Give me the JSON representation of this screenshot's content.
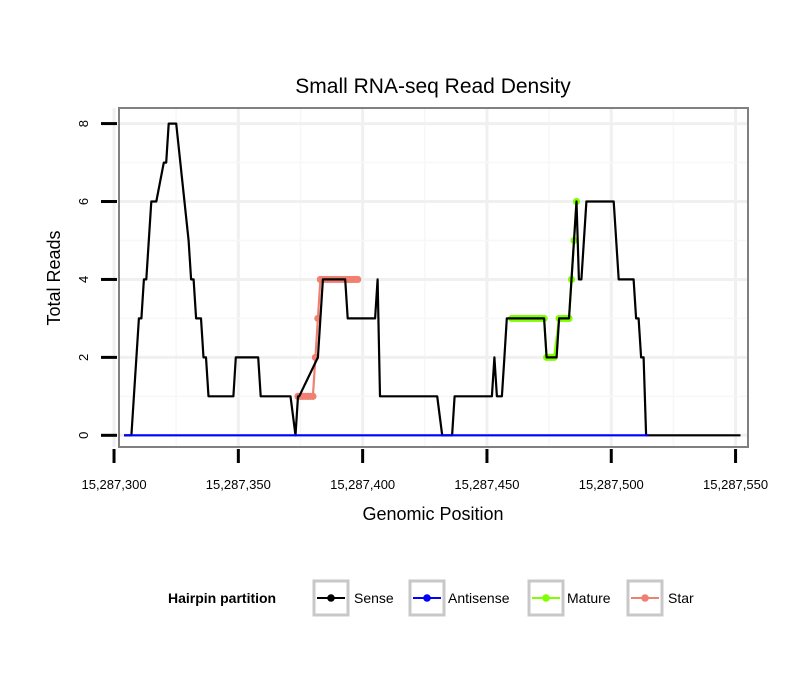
{
  "chart_data": {
    "type": "line",
    "title": "Small RNA-seq Read Density",
    "xlabel": "Genomic Position",
    "ylabel": "Total Reads",
    "xlim": [
      15287302,
      15287555
    ],
    "ylim": [
      -0.3,
      8.4
    ],
    "x_ticks": [
      15287300,
      15287350,
      15287400,
      15287450,
      15287500,
      15287550
    ],
    "x_tick_labels": [
      "15,287,300",
      "15,287,350",
      "15,287,400",
      "15,287,450",
      "15,287,500",
      "15,287,550"
    ],
    "y_ticks": [
      0,
      2,
      4,
      6,
      8
    ],
    "y_tick_labels": [
      "0",
      "2",
      "4",
      "6",
      "8"
    ],
    "grid": true,
    "legend": {
      "title": "Hairpin partition",
      "placement": "bottom",
      "entries": [
        {
          "name": "Sense",
          "color": "#000000"
        },
        {
          "name": "Antisense",
          "color": "#0000ff"
        },
        {
          "name": "Mature",
          "color": "#7fff00"
        },
        {
          "name": "Star",
          "color": "#f08070"
        }
      ]
    },
    "series": [
      {
        "name": "Sense",
        "color": "#000000",
        "x": [
          15287304,
          15287307,
          15287308,
          15287309,
          15287310,
          15287311,
          15287312,
          15287313,
          15287314,
          15287315,
          15287316,
          15287317,
          15287320,
          15287321,
          15287322,
          15287323,
          15287324,
          15287325,
          15287330,
          15287331,
          15287332,
          15287333,
          15287335,
          15287336,
          15287336.5,
          15287337,
          15287338,
          15287339,
          15287340,
          15287341,
          15287348,
          15287349,
          15287350,
          15287358,
          15287359,
          15287371,
          15287373,
          15287374,
          15287374.5,
          15287382,
          15287383,
          15287384,
          15287385,
          15287393,
          15287394,
          15287399,
          15287400,
          15287405,
          15287406,
          15287407,
          15287430,
          15287432,
          15287436,
          15287437,
          15287452,
          15287453,
          15287454,
          15287456,
          15287457,
          15287458,
          15287459,
          15287473,
          15287474,
          15287478,
          15287479,
          15287483,
          15287484,
          15287485,
          15287486,
          15287487,
          15287488,
          15287489,
          15287490,
          15287492,
          15287493,
          15287501,
          15287502,
          15287503,
          15287504,
          15287509,
          15287510,
          15287511,
          15287512,
          15287513,
          15287514,
          15287516,
          15287552
        ],
        "y": [
          0,
          0,
          1,
          2,
          3,
          3,
          4,
          4,
          5,
          6,
          6,
          6,
          7,
          7,
          8,
          8,
          8,
          8,
          5,
          4,
          4,
          3,
          3,
          2,
          2,
          2,
          1,
          1,
          1,
          1,
          1,
          2,
          2,
          2,
          1,
          1,
          0,
          1,
          1,
          2,
          3,
          4,
          4,
          4,
          3,
          3,
          3,
          3,
          4,
          1,
          1,
          0,
          0,
          1,
          1,
          2,
          1,
          1,
          2,
          3,
          3,
          3,
          2,
          2,
          3,
          3,
          4,
          5,
          6,
          4,
          4,
          5,
          6,
          6,
          6,
          6,
          5,
          4,
          4,
          4,
          3,
          3,
          2,
          2,
          0,
          0,
          0
        ]
      },
      {
        "name": "Antisense",
        "color": "#0000ff",
        "x": [
          15287304,
          15287515
        ],
        "y": [
          0,
          0
        ]
      },
      {
        "name": "Mature",
        "color": "#7fff00",
        "x": [
          15287460,
          15287461,
          15287462,
          15287463,
          15287464,
          15287465,
          15287466,
          15287467,
          15287468,
          15287469,
          15287470,
          15287471,
          15287472,
          15287473,
          15287474,
          15287475,
          15287476,
          15287477,
          15287479,
          15287480,
          15287481,
          15287482,
          15287483,
          15287484,
          15287485,
          15287486
        ],
        "y": [
          3,
          3,
          3,
          3,
          3,
          3,
          3,
          3,
          3,
          3,
          3,
          3,
          3,
          3,
          2,
          2,
          2,
          2,
          3,
          3,
          3,
          3,
          3,
          4,
          5,
          6
        ]
      },
      {
        "name": "Star",
        "color": "#f08070",
        "x": [
          15287374,
          15287375,
          15287376,
          15287377,
          15287378,
          15287379,
          15287380,
          15287381,
          15287382,
          15287383,
          15287384,
          15287385,
          15287386,
          15287387,
          15287388,
          15287389,
          15287390,
          15287391,
          15287392,
          15287393,
          15287394,
          15287395,
          15287396,
          15287397,
          15287398
        ],
        "y": [
          1,
          1,
          1,
          1,
          1,
          1,
          1,
          2,
          3,
          4,
          4,
          4,
          4,
          4,
          4,
          4,
          4,
          4,
          4,
          4,
          4,
          4,
          4,
          4,
          4
        ]
      }
    ]
  }
}
